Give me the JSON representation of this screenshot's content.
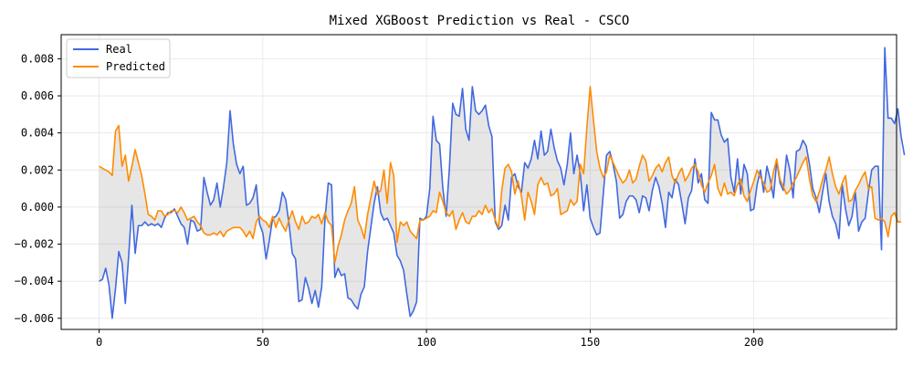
{
  "chart_data": {
    "type": "line",
    "title": "Mixed XGBoost Prediction vs Real - CSCO",
    "xlabel": "",
    "ylabel": "",
    "xlim": [
      -11.6,
      243.6
    ],
    "ylim": [
      -0.0066,
      0.0093
    ],
    "x_ticks": [
      0,
      50,
      100,
      150,
      200
    ],
    "x_tick_labels": [
      "0",
      "50",
      "100",
      "150",
      "200"
    ],
    "y_ticks": [
      -0.006,
      -0.004,
      -0.002,
      0.0,
      0.002,
      0.004,
      0.006,
      0.008
    ],
    "y_tick_labels": [
      "−0.006",
      "−0.004",
      "−0.002",
      "0.000",
      "0.002",
      "0.004",
      "0.006",
      "0.008"
    ],
    "grid": true,
    "legend_position": "upper-left",
    "fill_between": {
      "color": "#808080",
      "opacity": 0.2
    },
    "series": [
      {
        "name": "Real",
        "color": "#4169e1",
        "values": [
          -0.004,
          -0.0039,
          -0.0033,
          -0.0042,
          -0.006,
          -0.0044,
          -0.0024,
          -0.003,
          -0.0052,
          -0.0027,
          0.0001,
          -0.0025,
          -0.001,
          -0.001,
          -0.0008,
          -0.001,
          -0.0009,
          -0.001,
          -0.0009,
          -0.0011,
          -0.0006,
          -0.0003,
          -0.0003,
          -0.0001,
          -0.0005,
          -0.0009,
          -0.0011,
          -0.002,
          -0.0007,
          -0.0008,
          -0.0013,
          -0.0012,
          0.0016,
          0.0008,
          0.0001,
          0.0004,
          0.0013,
          0.0,
          0.0011,
          0.0024,
          0.0052,
          0.0034,
          0.0023,
          0.0018,
          0.0022,
          0.0001,
          0.0002,
          0.0005,
          0.0012,
          -0.0009,
          -0.0014,
          -0.0028,
          -0.0018,
          -0.0006,
          -0.0005,
          -0.0002,
          0.0008,
          0.0004,
          -0.0009,
          -0.0025,
          -0.0028,
          -0.0051,
          -0.005,
          -0.0038,
          -0.0044,
          -0.0052,
          -0.0045,
          -0.0054,
          -0.0043,
          -0.0006,
          0.0013,
          0.0012,
          -0.0038,
          -0.0033,
          -0.0037,
          -0.0036,
          -0.0049,
          -0.005,
          -0.0053,
          -0.0055,
          -0.0047,
          -0.0043,
          -0.0024,
          -0.0011,
          0.0002,
          0.0011,
          -0.0003,
          -0.0007,
          -0.0006,
          -0.001,
          -0.0014,
          -0.0026,
          -0.0029,
          -0.0034,
          -0.0047,
          -0.0059,
          -0.0056,
          -0.0051,
          -0.0006,
          -0.0007,
          -0.0005,
          0.001,
          0.0049,
          0.0036,
          0.0034,
          0.001,
          -0.0005,
          0.0021,
          0.0056,
          0.005,
          0.0049,
          0.0064,
          0.0042,
          0.0036,
          0.0065,
          0.0052,
          0.005,
          0.0052,
          0.0055,
          0.0044,
          0.0038,
          -0.0008,
          -0.0012,
          -0.001,
          0.0001,
          -0.0007,
          0.0016,
          0.0018,
          0.0011,
          0.0008,
          0.0024,
          0.0021,
          0.0026,
          0.0036,
          0.0026,
          0.0041,
          0.0028,
          0.003,
          0.0042,
          0.0032,
          0.0025,
          0.0021,
          0.0012,
          0.0023,
          0.004,
          0.0018,
          0.0028,
          0.0018,
          -0.0002,
          0.0012,
          -0.0006,
          -0.0011,
          -0.0015,
          -0.0014,
          0.0007,
          0.0028,
          0.003,
          0.0023,
          0.0014,
          -0.0006,
          -0.0004,
          0.0003,
          0.0006,
          0.0006,
          0.0004,
          -0.0003,
          0.0006,
          0.0005,
          -0.0002,
          0.0009,
          0.0016,
          0.0011,
          0.0002,
          -0.0011,
          0.0008,
          0.0005,
          0.0015,
          0.0012,
          0.0002,
          -0.0009,
          0.0005,
          0.0009,
          0.0026,
          0.0013,
          0.0018,
          0.0004,
          0.0002,
          0.0051,
          0.0047,
          0.0047,
          0.0039,
          0.0035,
          0.0037,
          0.0016,
          0.0008,
          0.0026,
          0.0007,
          0.0023,
          0.0018,
          -0.0002,
          -0.0001,
          0.0012,
          0.002,
          0.0008,
          0.0022,
          0.0015,
          0.0005,
          0.0025,
          0.0013,
          0.0009,
          0.0028,
          0.002,
          0.0005,
          0.003,
          0.0031,
          0.0036,
          0.0033,
          0.0023,
          0.001,
          0.0005,
          -0.0003,
          0.0008,
          0.0018,
          0.0003,
          -0.0005,
          -0.0009,
          -0.0017,
          0.0012,
          -0.0001,
          -0.001,
          -0.0005,
          0.0008,
          -0.0013,
          -0.0008,
          -0.0006,
          0.0008,
          0.002,
          0.0022,
          0.0022,
          -0.0023,
          0.0086,
          0.0048,
          0.0048,
          0.0045,
          0.0053,
          0.0038,
          0.0028
        ]
      },
      {
        "name": "Predicted",
        "color": "#ff8c00",
        "values": [
          0.0022,
          0.0021,
          0.002,
          0.0019,
          0.0017,
          0.0041,
          0.0044,
          0.0022,
          0.0028,
          0.0014,
          0.0022,
          0.0031,
          0.0024,
          0.0017,
          0.0007,
          -0.0004,
          -0.0005,
          -0.0007,
          -0.0002,
          -0.0002,
          -0.0005,
          -0.0004,
          -0.0002,
          -0.0002,
          -0.0003,
          0.0,
          -0.0003,
          -0.0007,
          -0.0006,
          -0.0005,
          -0.0008,
          -0.001,
          -0.0014,
          -0.0015,
          -0.0015,
          -0.0014,
          -0.0015,
          -0.0013,
          -0.0016,
          -0.0013,
          -0.0012,
          -0.0011,
          -0.0011,
          -0.0011,
          -0.0013,
          -0.0016,
          -0.0013,
          -0.0017,
          -0.0008,
          -0.0005,
          -0.0007,
          -0.0008,
          -0.0011,
          -0.0005,
          -0.0011,
          -0.0006,
          -0.001,
          -0.0013,
          -0.0007,
          -0.0002,
          -0.0008,
          -0.0012,
          -0.0005,
          -0.0009,
          -0.0008,
          -0.0005,
          -0.0006,
          -0.0004,
          -0.0009,
          -0.0003,
          -0.0008,
          -0.001,
          -0.003,
          -0.0021,
          -0.0015,
          -0.0007,
          -0.0002,
          0.0002,
          0.0011,
          -0.0007,
          -0.0011,
          -0.0017,
          -0.0004,
          0.0005,
          0.0014,
          0.0007,
          0.0009,
          0.002,
          0.0002,
          0.0024,
          0.0017,
          -0.0019,
          -0.0008,
          -0.001,
          -0.0008,
          -0.0013,
          -0.0015,
          -0.0017,
          -0.0007,
          -0.0007,
          -0.0006,
          -0.0005,
          -0.0002,
          -0.0003,
          0.0008,
          0.0003,
          -0.0003,
          -0.0005,
          -0.0002,
          -0.0012,
          -0.0007,
          -0.0003,
          -0.0008,
          -0.0009,
          -0.0005,
          -0.0005,
          -0.0002,
          -0.0004,
          0.0001,
          -0.0003,
          -0.0001,
          -0.0007,
          -0.0011,
          0.0009,
          0.0021,
          0.0023,
          0.0019,
          0.0007,
          0.0014,
          0.0006,
          -0.0007,
          0.0008,
          0.0003,
          -0.0004,
          0.0012,
          0.0016,
          0.0012,
          0.0013,
          0.0006,
          0.0007,
          0.001,
          -0.0004,
          -0.0003,
          -0.0002,
          0.0004,
          0.0001,
          0.0003,
          0.0023,
          0.0018,
          0.0043,
          0.0065,
          0.0047,
          0.003,
          0.0021,
          0.0016,
          0.0019,
          0.0028,
          0.0024,
          0.002,
          0.0016,
          0.0013,
          0.0015,
          0.002,
          0.0013,
          0.0015,
          0.0022,
          0.0028,
          0.0025,
          0.0014,
          0.0017,
          0.0021,
          0.0023,
          0.0019,
          0.0024,
          0.0027,
          0.0017,
          0.0013,
          0.0018,
          0.0021,
          0.0014,
          0.0017,
          0.0021,
          0.0023,
          0.0019,
          0.0012,
          0.0008,
          0.0013,
          0.0017,
          0.0023,
          0.001,
          0.0006,
          0.0013,
          0.0007,
          0.0008,
          0.0006,
          0.0012,
          0.0015,
          0.0006,
          0.0003,
          0.0009,
          0.0014,
          0.002,
          0.0016,
          0.0013,
          0.0008,
          0.0009,
          0.0019,
          0.0026,
          0.0015,
          0.0011,
          0.0007,
          0.0009,
          0.0013,
          0.0016,
          0.002,
          0.0024,
          0.0027,
          0.0015,
          0.0006,
          0.0003,
          0.0008,
          0.0015,
          0.002,
          0.0027,
          0.0018,
          0.0011,
          0.0007,
          0.0013,
          0.0017,
          0.0003,
          0.0004,
          0.0009,
          0.0012,
          0.0016,
          0.0019,
          0.001,
          0.0011,
          -0.0006,
          -0.0007,
          -0.0006,
          -0.0008,
          -0.0016,
          -0.0005,
          -0.0003,
          -0.0008,
          -0.0008
        ]
      }
    ]
  }
}
